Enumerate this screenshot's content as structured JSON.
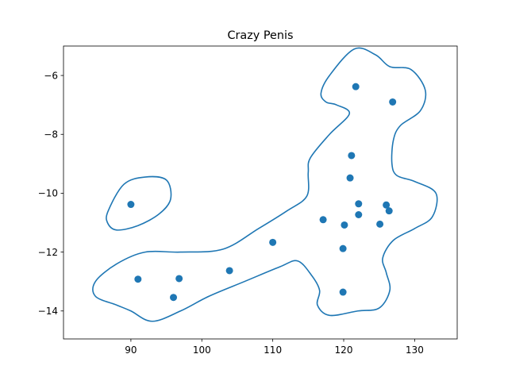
{
  "chart_data": {
    "type": "scatter",
    "title": "Crazy Penis",
    "xlabel": "",
    "ylabel": "",
    "xlim": [
      80.5,
      136
    ],
    "ylim": [
      -14.95,
      -5.0
    ],
    "x_ticks": [
      90,
      100,
      110,
      120,
      130
    ],
    "y_ticks": [
      -14,
      -12,
      -10,
      -8,
      -6
    ],
    "grid": false,
    "legend": "none",
    "colors": {
      "series": "#1f77b4",
      "axes": "#000000",
      "background": "#ffffff"
    },
    "series": [
      {
        "points": [
          {
            "x": 90.0,
            "y": -10.38
          },
          {
            "x": 91.0,
            "y": -12.92
          },
          {
            "x": 96.0,
            "y": -13.54
          },
          {
            "x": 96.8,
            "y": -12.9
          },
          {
            "x": 103.9,
            "y": -12.63
          },
          {
            "x": 110.0,
            "y": -11.67
          },
          {
            "x": 117.1,
            "y": -10.9
          },
          {
            "x": 119.9,
            "y": -11.88
          },
          {
            "x": 119.9,
            "y": -13.36
          },
          {
            "x": 120.1,
            "y": -11.08
          },
          {
            "x": 120.9,
            "y": -9.48
          },
          {
            "x": 121.1,
            "y": -8.72
          },
          {
            "x": 121.7,
            "y": -6.38
          },
          {
            "x": 122.1,
            "y": -10.36
          },
          {
            "x": 122.1,
            "y": -10.73
          },
          {
            "x": 125.1,
            "y": -11.05
          },
          {
            "x": 126.0,
            "y": -10.4
          },
          {
            "x": 126.4,
            "y": -10.6
          },
          {
            "x": 126.9,
            "y": -6.9
          }
        ]
      }
    ],
    "contours": [
      {
        "closed": true,
        "points": [
          [
            118.0,
            -6.0
          ],
          [
            121.5,
            -5.1
          ],
          [
            124.5,
            -5.3
          ],
          [
            126.5,
            -5.7
          ],
          [
            129.5,
            -5.8
          ],
          [
            131.5,
            -6.5
          ],
          [
            130.8,
            -7.2
          ],
          [
            128.0,
            -7.7
          ],
          [
            127.0,
            -8.2
          ],
          [
            126.8,
            -9.0
          ],
          [
            127.5,
            -9.4
          ],
          [
            130.0,
            -9.6
          ],
          [
            133.0,
            -10.0
          ],
          [
            132.5,
            -10.8
          ],
          [
            130.0,
            -11.2
          ],
          [
            127.0,
            -11.6
          ],
          [
            125.5,
            -12.2
          ],
          [
            126.0,
            -12.7
          ],
          [
            126.5,
            -13.3
          ],
          [
            125.0,
            -13.9
          ],
          [
            122.0,
            -14.0
          ],
          [
            118.0,
            -14.15
          ],
          [
            116.3,
            -13.8
          ],
          [
            116.6,
            -13.3
          ],
          [
            115.5,
            -12.8
          ],
          [
            113.5,
            -12.3
          ],
          [
            111.0,
            -12.5
          ],
          [
            106.0,
            -13.0
          ],
          [
            101.0,
            -13.5
          ],
          [
            97.0,
            -14.0
          ],
          [
            93.0,
            -14.35
          ],
          [
            90.0,
            -14.0
          ],
          [
            88.0,
            -13.8
          ],
          [
            85.0,
            -13.5
          ],
          [
            85.0,
            -13.0
          ],
          [
            88.0,
            -12.4
          ],
          [
            92.0,
            -12.0
          ],
          [
            97.0,
            -12.0
          ],
          [
            103.0,
            -11.9
          ],
          [
            108.0,
            -11.2
          ],
          [
            112.0,
            -10.6
          ],
          [
            114.8,
            -10.1
          ],
          [
            115.0,
            -9.3
          ],
          [
            115.3,
            -8.8
          ],
          [
            118.0,
            -8.0
          ],
          [
            120.8,
            -7.3
          ],
          [
            119.0,
            -7.0
          ],
          [
            117.5,
            -6.9
          ],
          [
            116.8,
            -6.6
          ]
        ]
      },
      {
        "closed": true,
        "points": [
          [
            86.8,
            -10.6
          ],
          [
            89.0,
            -9.7
          ],
          [
            92.0,
            -9.45
          ],
          [
            95.0,
            -9.55
          ],
          [
            95.6,
            -10.2
          ],
          [
            94.0,
            -10.7
          ],
          [
            91.0,
            -11.1
          ],
          [
            88.0,
            -11.25
          ],
          [
            86.7,
            -11.0
          ]
        ]
      }
    ]
  }
}
